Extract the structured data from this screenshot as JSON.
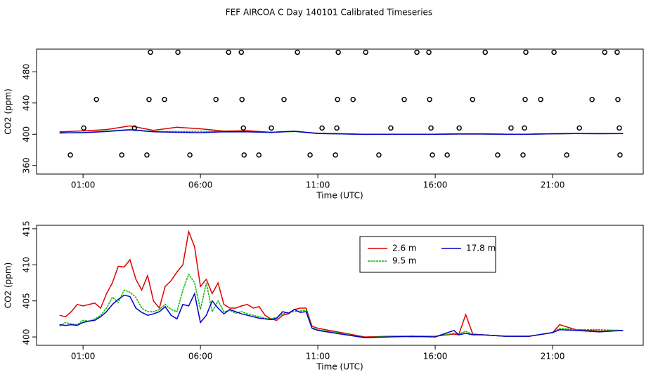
{
  "chart_data": [
    {
      "type": "scatter",
      "title": "FEF AIRCOA C  Day 140101  Calibrated Timeseries",
      "x_label": "Time (UTC)",
      "y_label": "CO2 (ppm)",
      "xlim": [
        -0.98,
        24.86
      ],
      "ylim": [
        349,
        509
      ],
      "xticks": [
        {
          "value": 1,
          "label": "01:00"
        },
        {
          "value": 6,
          "label": "06:00"
        },
        {
          "value": 11,
          "label": "11:00"
        },
        {
          "value": 16,
          "label": "16:00"
        },
        {
          "value": 21,
          "label": "21:00"
        }
      ],
      "yticks": [
        360,
        400,
        440,
        480
      ],
      "marker_color": "#000000",
      "x": [
        3.87,
        5.04,
        7.2,
        7.74,
        10.13,
        11.87,
        13.04,
        15.22,
        15.73,
        18.13,
        19.86,
        21.06,
        23.22,
        23.75,
        1.57,
        3.81,
        4.47,
        6.66,
        7.77,
        9.56,
        11.84,
        12.5,
        14.68,
        15.76,
        17.59,
        19.83,
        20.49,
        22.68,
        23.78,
        1.03,
        3.19,
        7.83,
        9.02,
        11.18,
        11.81,
        14.11,
        15.82,
        17.02,
        19.23,
        19.8,
        22.14,
        23.84,
        0.46,
        2.65,
        3.72,
        5.55,
        7.86,
        8.49,
        10.67,
        11.75,
        13.6,
        15.88,
        16.51,
        18.66,
        19.74,
        21.6,
        23.87
      ],
      "y": [
        505,
        505,
        505,
        505,
        505,
        505,
        505,
        505,
        505,
        505,
        505,
        505,
        505,
        505,
        444.5,
        444.5,
        444.5,
        444.5,
        444.5,
        444.5,
        444.5,
        444.5,
        444.5,
        444.5,
        444.5,
        444.5,
        444.5,
        444.5,
        444.5,
        408,
        408,
        408,
        408,
        408,
        408,
        408,
        408,
        408,
        408,
        408,
        408,
        408,
        373.4,
        373.4,
        373.4,
        373.4,
        373.4,
        373.4,
        373.4,
        373.4,
        373.4,
        373.4,
        373.4,
        373.4,
        373.4,
        373.4,
        373.4
      ],
      "line_x": [
        0,
        1,
        2,
        3,
        4,
        5,
        6,
        7,
        8,
        9,
        10,
        11,
        12,
        13,
        14,
        15,
        16,
        17,
        18,
        19,
        20,
        21,
        22,
        23,
        24
      ],
      "series": [
        {
          "color": "#dd0000",
          "values": [
            403,
            404.3,
            406,
            410.7,
            405,
            409,
            407,
            404,
            404.5,
            402.5,
            403.8,
            401.2,
            400.6,
            400,
            400.1,
            400.1,
            400.1,
            400.3,
            400.3,
            400.1,
            400.1,
            400.6,
            401,
            400.8,
            400.9
          ]
        },
        {
          "color": "#00bb00",
          "values": [
            401.5,
            402.3,
            404,
            406.2,
            403.5,
            403.5,
            403.8,
            403.5,
            403.2,
            402.5,
            403.5,
            401,
            400.5,
            399.9,
            400.1,
            400,
            400.1,
            400.4,
            400.3,
            400.1,
            400.1,
            400.6,
            401,
            401,
            400.9
          ]
        },
        {
          "color": "#0000cc",
          "values": [
            401.7,
            402,
            403.5,
            405.6,
            403.2,
            402.5,
            402,
            403.2,
            403,
            402.4,
            403.8,
            400.9,
            400.4,
            399.9,
            400,
            400.1,
            400,
            400.3,
            400.3,
            400.1,
            400.1,
            400.6,
            400.9,
            400.7,
            400.9
          ]
        }
      ]
    },
    {
      "type": "line",
      "x_label": "Time (UTC)",
      "y_label": "CO2 (ppm)",
      "xlim": [
        -0.98,
        24.86
      ],
      "ylim": [
        398.84,
        415.48
      ],
      "xticks": [
        {
          "value": 1,
          "label": "01:00"
        },
        {
          "value": 6,
          "label": "06:00"
        },
        {
          "value": 11,
          "label": "11:00"
        },
        {
          "value": 16,
          "label": "16:00"
        },
        {
          "value": 21,
          "label": "21:00"
        }
      ],
      "yticks": [
        400,
        405,
        410,
        415
      ],
      "x": [
        0,
        0.25,
        0.5,
        0.75,
        1,
        1.25,
        1.5,
        1.75,
        2,
        2.25,
        2.5,
        2.75,
        3,
        3.25,
        3.5,
        3.75,
        4,
        4.25,
        4.5,
        4.75,
        5,
        5.25,
        5.5,
        5.75,
        6,
        6.25,
        6.5,
        6.75,
        7,
        7.25,
        7.5,
        7.75,
        8,
        8.25,
        8.5,
        8.75,
        9,
        9.25,
        9.5,
        9.75,
        10,
        10.25,
        10.5,
        10.75,
        11,
        12,
        13,
        14,
        15,
        16,
        16.8,
        17,
        17.3,
        17.6,
        18,
        19,
        20,
        21,
        21.3,
        22,
        23,
        24
      ],
      "series": [
        {
          "name": "2.6 m",
          "color": "#dd0000",
          "values": [
            403,
            402.8,
            403.5,
            404.5,
            404.3,
            404.5,
            404.7,
            404,
            406,
            407.5,
            409.8,
            409.7,
            410.7,
            408,
            406.5,
            408.5,
            405,
            404,
            407,
            407.8,
            409,
            410,
            414.6,
            412.5,
            407,
            408,
            406,
            407.5,
            404.5,
            404,
            404,
            404.3,
            404.5,
            404,
            404.2,
            403,
            402.5,
            402.3,
            403,
            403.2,
            403.8,
            404,
            404,
            401.5,
            401.2,
            400.6,
            400,
            400.1,
            400.1,
            400.1,
            400.4,
            400.3,
            403.1,
            400.4,
            400.3,
            400.1,
            400.1,
            400.6,
            401.7,
            401,
            400.8,
            400.9
          ]
        },
        {
          "name": "9.5 m",
          "color": "#00bb00",
          "values": [
            401.5,
            402,
            401.8,
            401.7,
            402.3,
            402.2,
            402.5,
            403,
            404,
            405.5,
            404.8,
            406.5,
            406.2,
            405.5,
            404,
            403.5,
            403.5,
            403.8,
            404.5,
            403.8,
            403.5,
            406.5,
            408.7,
            407.5,
            403.8,
            407.5,
            403.5,
            405,
            403.5,
            403.7,
            403.3,
            403.5,
            403.2,
            403,
            402.8,
            402.6,
            402.5,
            402.7,
            403.2,
            403.4,
            403.5,
            403.6,
            403.7,
            401.3,
            401,
            400.5,
            399.9,
            400.1,
            400,
            400.1,
            400.5,
            400.4,
            400.8,
            400.3,
            400.3,
            400.1,
            400.1,
            400.6,
            401.2,
            401,
            401,
            400.9
          ]
        },
        {
          "name": "17.8 m",
          "color": "#0000cc",
          "values": [
            401.7,
            401.6,
            401.7,
            401.6,
            402,
            402.2,
            402.3,
            402.8,
            403.5,
            404.5,
            405.2,
            405.8,
            405.6,
            404,
            403.4,
            403,
            403.2,
            403.5,
            404.2,
            403,
            402.5,
            404.5,
            404.3,
            406,
            402,
            403,
            405,
            404,
            403.2,
            403.8,
            403.5,
            403.2,
            403,
            402.8,
            402.6,
            402.5,
            402.4,
            402.6,
            403.5,
            403.3,
            403.8,
            403.4,
            403.5,
            401.2,
            400.9,
            400.4,
            399.9,
            400,
            400.1,
            400,
            400.9,
            400.3,
            400.5,
            400.3,
            400.3,
            400.1,
            400.1,
            400.6,
            401,
            400.9,
            400.7,
            400.9
          ]
        }
      ]
    }
  ]
}
